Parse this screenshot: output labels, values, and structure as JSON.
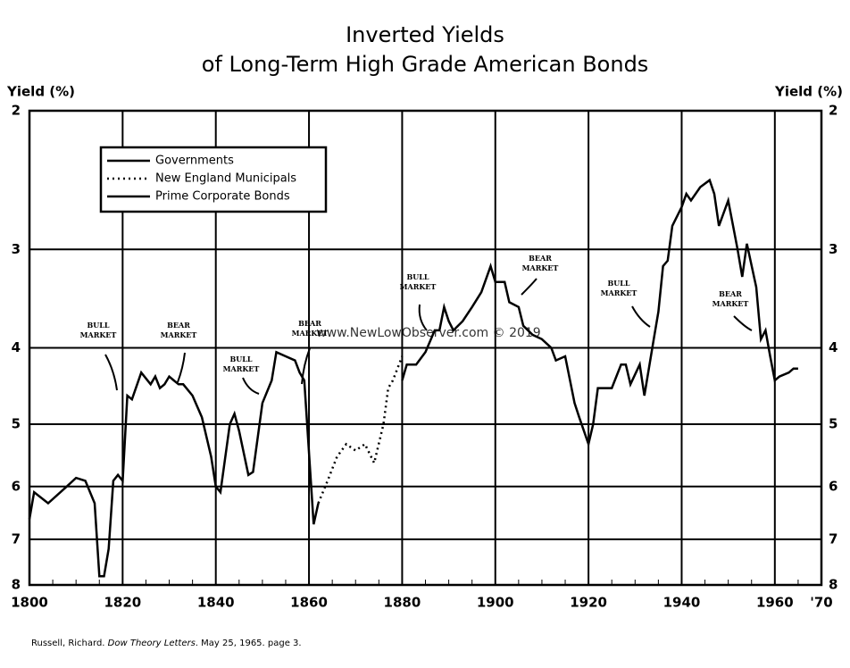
{
  "chart_data": {
    "type": "line",
    "title": [
      "Inverted Yields",
      "of Long-Term High Grade American Bonds"
    ],
    "ylabel": "Yield (%)",
    "log_scale": true,
    "y_inverted": true,
    "grid": true,
    "legend": "upper left",
    "xlim": [
      1800,
      1970
    ],
    "xticks": [
      1800,
      1820,
      1840,
      1860,
      1880,
      1900,
      1920,
      1940,
      1960,
      {
        "value": 1970,
        "label": "'70"
      }
    ],
    "ylim": [
      2,
      8
    ],
    "yticks": [
      2,
      3,
      4,
      5,
      6,
      7,
      8
    ],
    "series": [
      {
        "name": "Governments",
        "color": "#000000",
        "dash": "solid",
        "x": [
          1800,
          1801,
          1804,
          1808,
          1810,
          1812,
          1814,
          1815,
          1816,
          1817,
          1818,
          1819,
          1820,
          1821,
          1822,
          1824,
          1826,
          1827,
          1828,
          1829,
          1830,
          1831,
          1832,
          1833,
          1835,
          1837,
          1839,
          1840,
          1841,
          1843,
          1844,
          1845,
          1847,
          1848,
          1850,
          1852,
          1853,
          1855,
          1857,
          1858,
          1859,
          1861,
          1862
        ],
        "values": [
          6.6,
          6.1,
          6.3,
          6.0,
          5.85,
          5.9,
          6.3,
          7.8,
          7.8,
          7.2,
          5.9,
          5.8,
          5.9,
          4.6,
          4.65,
          4.3,
          4.45,
          4.35,
          4.5,
          4.45,
          4.35,
          4.4,
          4.45,
          4.45,
          4.6,
          4.9,
          5.5,
          6.0,
          6.1,
          5.0,
          4.85,
          5.1,
          5.8,
          5.75,
          4.7,
          4.4,
          4.05,
          4.1,
          4.15,
          4.3,
          4.4,
          6.7,
          6.3
        ]
      },
      {
        "name": "New England Municipals",
        "color": "#000000",
        "dash": "dotted",
        "x": [
          1862,
          1864,
          1866,
          1868,
          1870,
          1872,
          1874,
          1876,
          1877,
          1878,
          1880
        ],
        "values": [
          6.3,
          5.9,
          5.5,
          5.3,
          5.4,
          5.3,
          5.6,
          5.0,
          4.5,
          4.4,
          4.1
        ]
      },
      {
        "name": "Prime Corporate Bonds",
        "color": "#000000",
        "dash": "solid",
        "x": [
          1880,
          1881,
          1883,
          1885,
          1887,
          1888,
          1889,
          1890,
          1891,
          1893,
          1895,
          1897,
          1899,
          1900,
          1902,
          1903,
          1905,
          1906,
          1908,
          1910,
          1912,
          1913,
          1915,
          1917,
          1918,
          1920,
          1921,
          1922,
          1925,
          1927,
          1928,
          1929,
          1931,
          1932,
          1934,
          1935,
          1936,
          1937,
          1938,
          1940,
          1941,
          1942,
          1944,
          1946,
          1947,
          1948,
          1950,
          1952,
          1953,
          1954,
          1956,
          1957,
          1958,
          1959,
          1960,
          1961,
          1963,
          1964,
          1965
        ],
        "values": [
          4.4,
          4.2,
          4.2,
          4.05,
          3.8,
          3.8,
          3.55,
          3.7,
          3.8,
          3.7,
          3.55,
          3.4,
          3.15,
          3.3,
          3.3,
          3.5,
          3.55,
          3.75,
          3.85,
          3.9,
          4.0,
          4.15,
          4.1,
          4.7,
          4.9,
          5.3,
          5.0,
          4.5,
          4.5,
          4.2,
          4.2,
          4.45,
          4.2,
          4.6,
          3.9,
          3.6,
          3.15,
          3.1,
          2.8,
          2.65,
          2.55,
          2.6,
          2.5,
          2.45,
          2.55,
          2.8,
          2.6,
          3.0,
          3.25,
          2.95,
          3.35,
          3.9,
          3.8,
          4.1,
          4.4,
          4.35,
          4.3,
          4.25,
          4.25
        ]
      }
    ],
    "annotations": [
      [
        "BULL",
        "MARKET"
      ],
      [
        "BEAR",
        "MARKET"
      ],
      [
        "BULL",
        "MARKET"
      ],
      [
        "BEAR",
        "MARKET"
      ],
      [
        "BULL",
        "MARKET"
      ],
      [
        "BEAR",
        "MARKET"
      ],
      [
        "BULL",
        "MARKET"
      ],
      [
        "BEAR",
        "MARKET"
      ]
    ],
    "watermark": "www.NewLowObserver.com © 2019"
  },
  "source": [
    "Russell, Richard. ",
    "Dow Theory Letters",
    ". May 25, 1965. page 3."
  ]
}
